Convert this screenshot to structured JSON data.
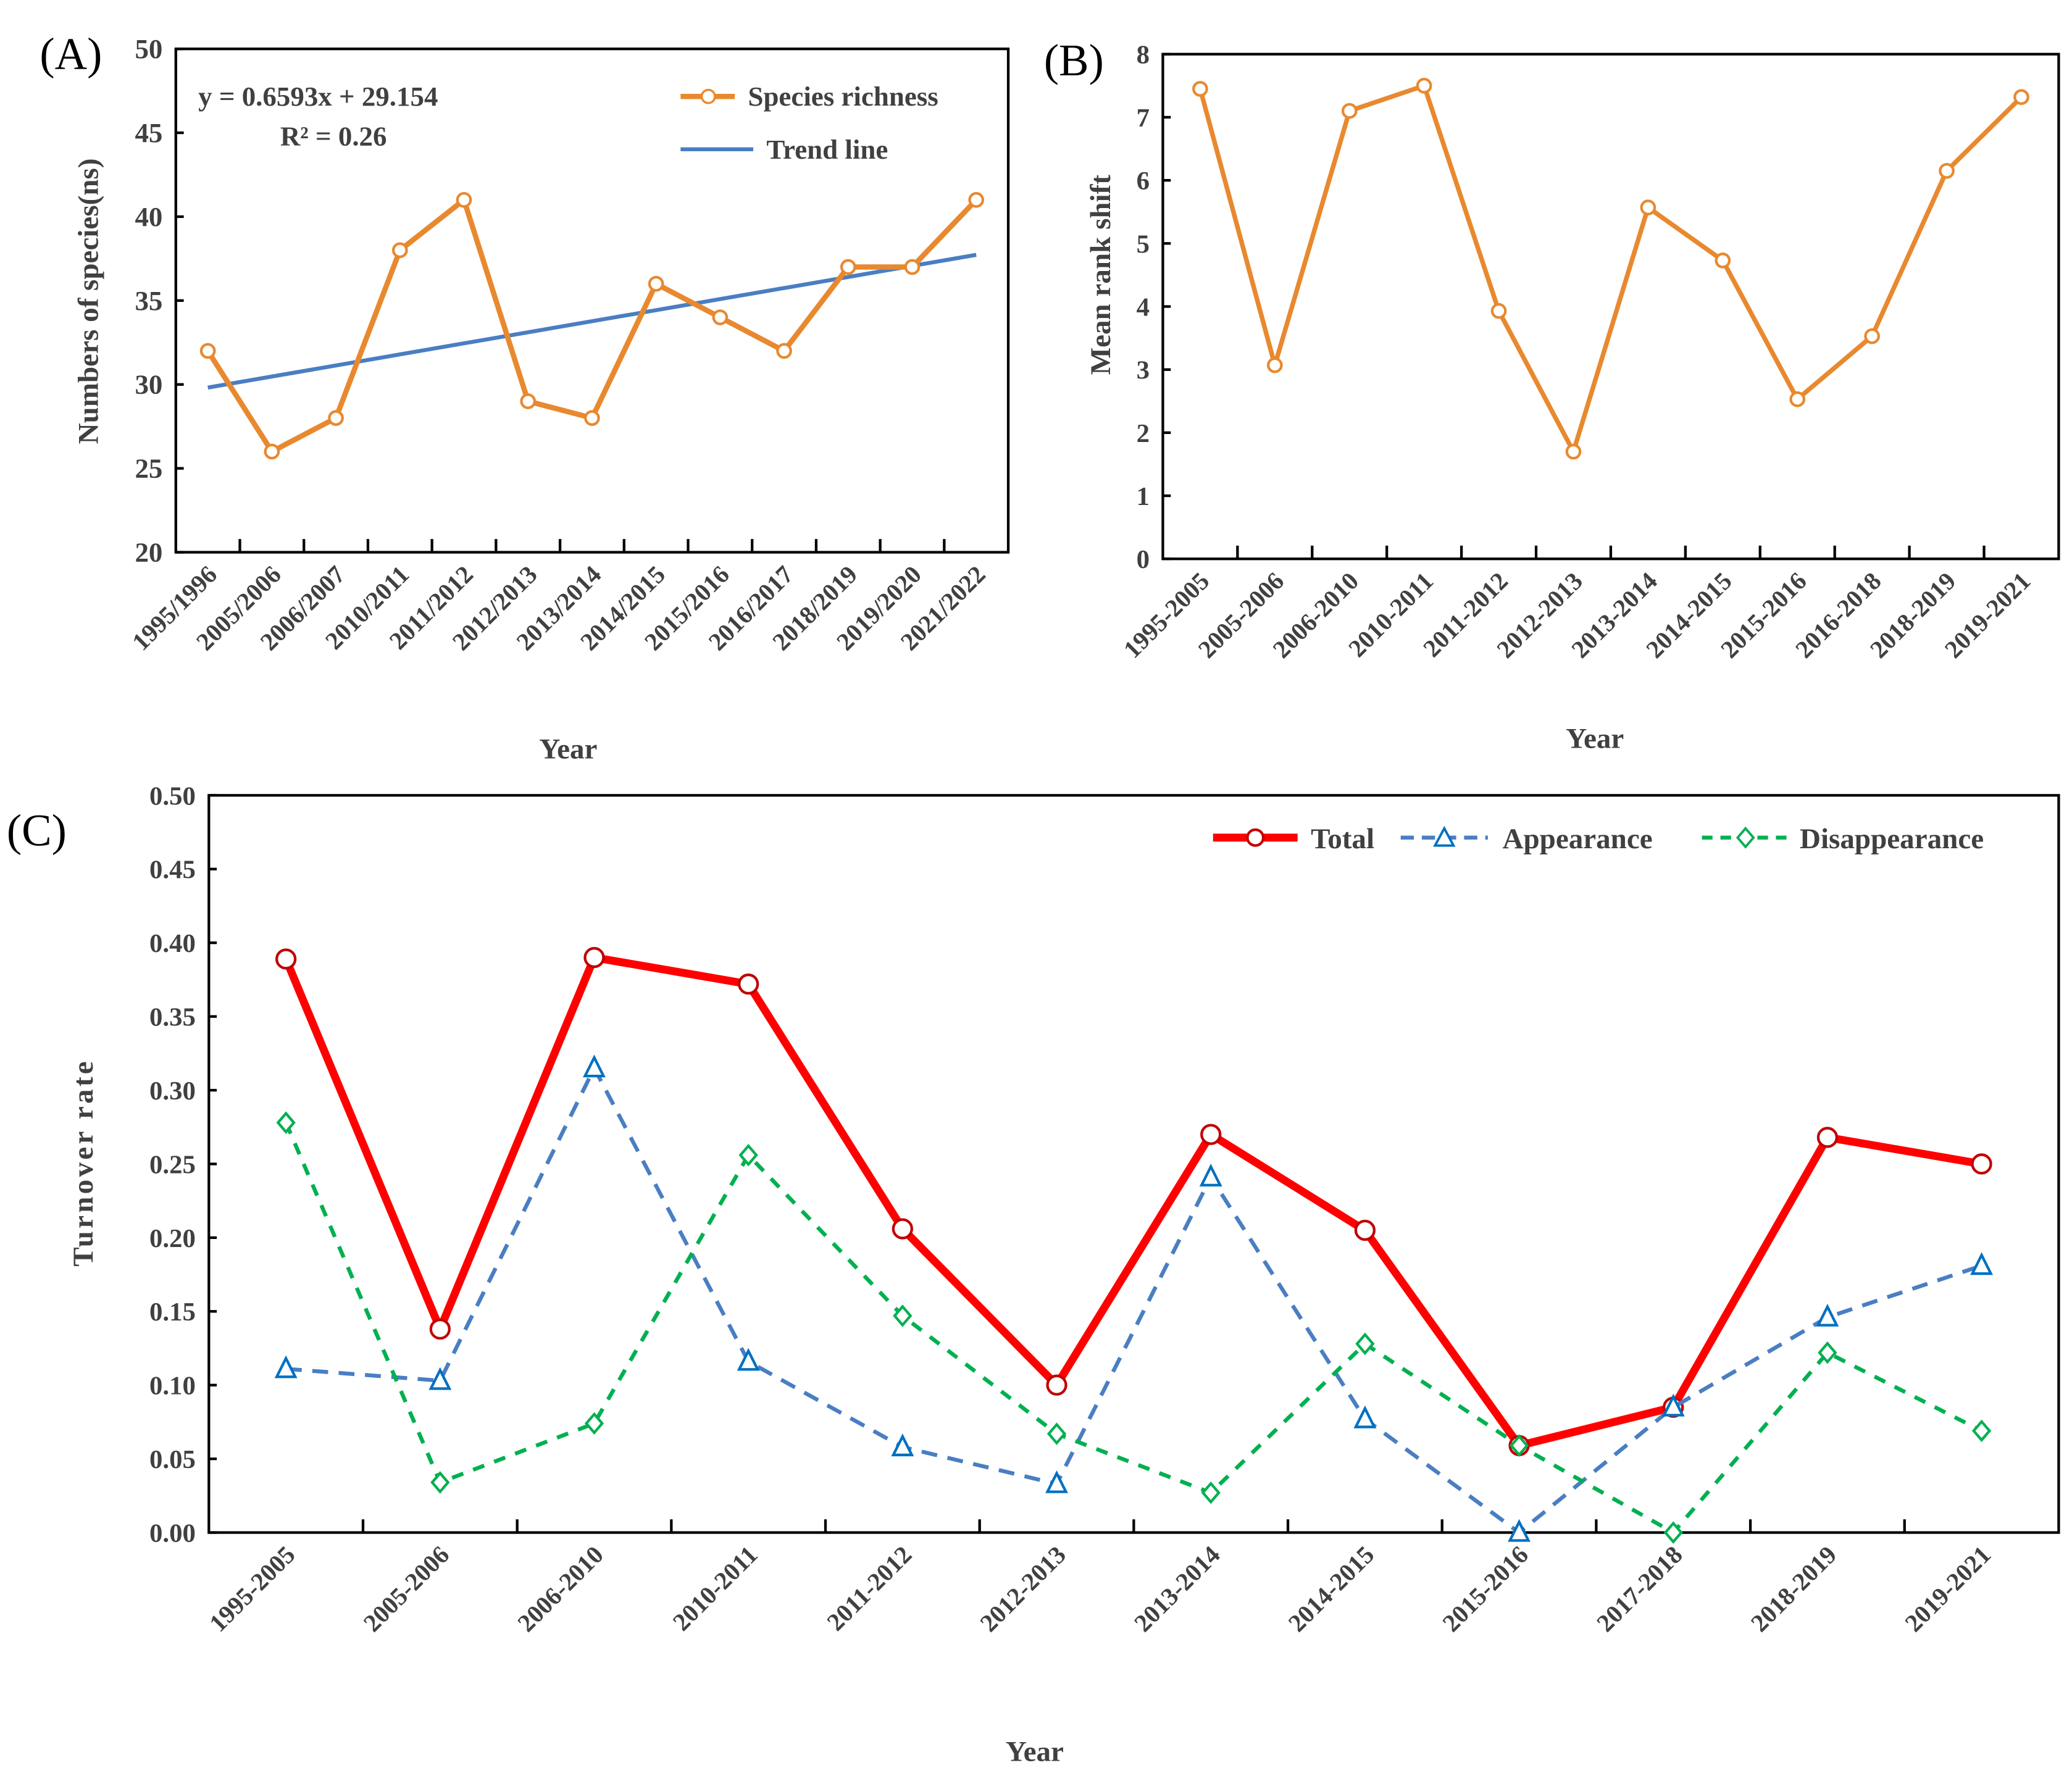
{
  "colors": {
    "orange": "#E8892F",
    "blue": "#4A7EC2",
    "red": "#FF0000",
    "darkred": "#C00000",
    "tri": "#0070C0",
    "green": "#00B050",
    "text": "#404040"
  },
  "chart_data": [
    {
      "panel_label": "(A)",
      "type": "line",
      "xlabel": "Year",
      "ylabel": "Numbers of species(ns)",
      "ylim": [
        20,
        50
      ],
      "yticks": [
        "20",
        "25",
        "30",
        "35",
        "40",
        "45",
        "50"
      ],
      "categories": [
        "1995/1996",
        "2005/2006",
        "2006/2007",
        "2010/2011",
        "2011/2012",
        "2012/2013",
        "2013/2014",
        "2014/2015",
        "2015/2016",
        "2016/2017",
        "2018/2019",
        "2019/2020",
        "2021/2022"
      ],
      "series": [
        {
          "name": "Species richness",
          "values": [
            32,
            26,
            28,
            38,
            41,
            29,
            28,
            36,
            34,
            32,
            37,
            37,
            41
          ]
        },
        {
          "name": "Trend line",
          "slope": 0.6593,
          "intercept": 29.154
        }
      ],
      "equation": "y = 0.6593x + 29.154",
      "r2": "R² = 0.26",
      "legend": "top-right"
    },
    {
      "panel_label": "(B)",
      "type": "line",
      "xlabel": "Year",
      "ylabel": "Mean rank shift",
      "ylim": [
        0,
        8
      ],
      "yticks": [
        "0",
        "1",
        "2",
        "3",
        "4",
        "5",
        "6",
        "7",
        "8"
      ],
      "categories": [
        "1995-2005",
        "2005-2006",
        "2006-2010",
        "2010-2011",
        "2011-2012",
        "2012-2013",
        "2013-2014",
        "2014-2015",
        "2015-2016",
        "2016-2018",
        "2018-2019",
        "2019-2021"
      ],
      "series": [
        {
          "name": "Mean rank shift",
          "values": [
            7.45,
            3.07,
            7.1,
            7.5,
            3.93,
            1.7,
            5.57,
            4.73,
            2.53,
            3.53,
            6.15,
            7.32
          ]
        }
      ]
    },
    {
      "panel_label": "(C)",
      "type": "line",
      "xlabel": "Year",
      "ylabel": "Turnover rate",
      "ylim": [
        0,
        0.5
      ],
      "yticks": [
        "0.00",
        "0.05",
        "0.10",
        "0.15",
        "0.20",
        "0.25",
        "0.30",
        "0.35",
        "0.40",
        "0.45",
        "0.50"
      ],
      "categories": [
        "1995-2005",
        "2005-2006",
        "2006-2010",
        "2010-2011",
        "2011-2012",
        "2012-2013",
        "2013-2014",
        "2014-2015",
        "2015-2016",
        "2017-2018",
        "2018-2019",
        "2019-2021"
      ],
      "series": [
        {
          "name": "Total",
          "values": [
            0.389,
            0.138,
            0.39,
            0.372,
            0.206,
            0.1,
            0.27,
            0.205,
            0.059,
            0.085,
            0.268,
            0.25
          ]
        },
        {
          "name": "Appearance",
          "values": [
            0.111,
            0.103,
            0.315,
            0.116,
            0.058,
            0.033,
            0.241,
            0.077,
            0.0,
            0.085,
            0.146,
            0.181
          ]
        },
        {
          "name": "Disappearance",
          "values": [
            0.278,
            0.034,
            0.074,
            0.256,
            0.147,
            0.067,
            0.027,
            0.128,
            0.059,
            0.0,
            0.122,
            0.069
          ]
        }
      ],
      "legend": "top-right"
    }
  ]
}
